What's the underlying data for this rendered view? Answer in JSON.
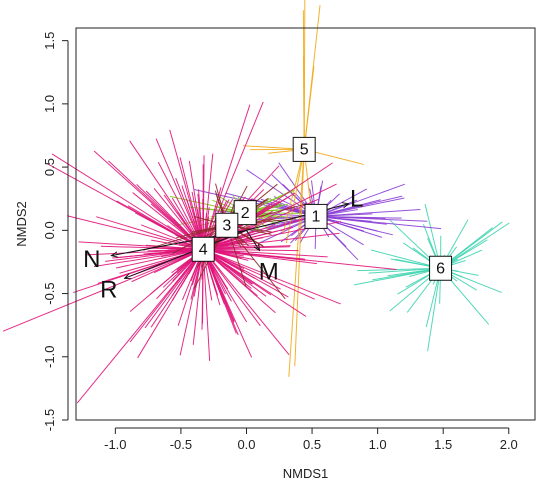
{
  "chart_data": {
    "type": "scatter",
    "title": "",
    "xlabel": "NMDS1",
    "ylabel": "NMDS2",
    "xlim": [
      -1.3,
      2.2
    ],
    "ylim": [
      -1.5,
      1.6
    ],
    "xticks": [
      -1.0,
      -0.5,
      0.0,
      0.5,
      1.0,
      1.5,
      2.0
    ],
    "xtick_labels": [
      "-1.0",
      "-0.5",
      "0.0",
      "0.5",
      "1.0",
      "1.5",
      "2.0"
    ],
    "yticks": [
      -1.5,
      -1.0,
      -0.5,
      0.0,
      0.5,
      1.0,
      1.5
    ],
    "ytick_labels": [
      "-1.5",
      "-1.0",
      "-0.5",
      "0.0",
      "0.5",
      "1.0",
      "1.5"
    ],
    "grid": false,
    "series": [
      {
        "label": "1",
        "centroid": [
          0.53,
          0.11
        ],
        "color": "#8b3fd6",
        "spread": [
          0.45,
          0.17
        ],
        "spokes": 70
      },
      {
        "label": "2",
        "centroid": [
          -0.01,
          0.14
        ],
        "color": "#7acd18",
        "spread": [
          0.25,
          0.12
        ],
        "spokes": 60
      },
      {
        "label": "3",
        "centroid": [
          -0.15,
          0.04
        ],
        "color": "#8c2a2a",
        "spread": [
          0.25,
          0.22
        ],
        "spokes": 40
      },
      {
        "label": "4",
        "centroid": [
          -0.33,
          -0.15
        ],
        "color": "#e0157a",
        "spread": [
          0.45,
          0.42
        ],
        "spokes": 220
      },
      {
        "label": "5",
        "centroid": [
          0.44,
          0.64
        ],
        "color": "#f2aa1a",
        "spread": [
          0.35,
          0.75
        ],
        "spokes": 14
      },
      {
        "label": "6",
        "centroid": [
          1.48,
          -0.3
        ],
        "color": "#3fd4b0",
        "spread": [
          0.32,
          0.25
        ],
        "spokes": 45
      }
    ],
    "vectors": [
      {
        "label": "L",
        "x": 0.78,
        "y": 0.21,
        "label_x": 0.84,
        "label_y": 0.24
      },
      {
        "label": "N",
        "x": -1.03,
        "y": -0.2,
        "label_x": -1.18,
        "label_y": -0.24
      },
      {
        "label": "R",
        "x": -0.93,
        "y": -0.38,
        "label_x": -1.05,
        "label_y": -0.48
      },
      {
        "label": "M",
        "x": 0.1,
        "y": -0.16,
        "label_x": 0.17,
        "label_y": -0.34
      }
    ]
  }
}
